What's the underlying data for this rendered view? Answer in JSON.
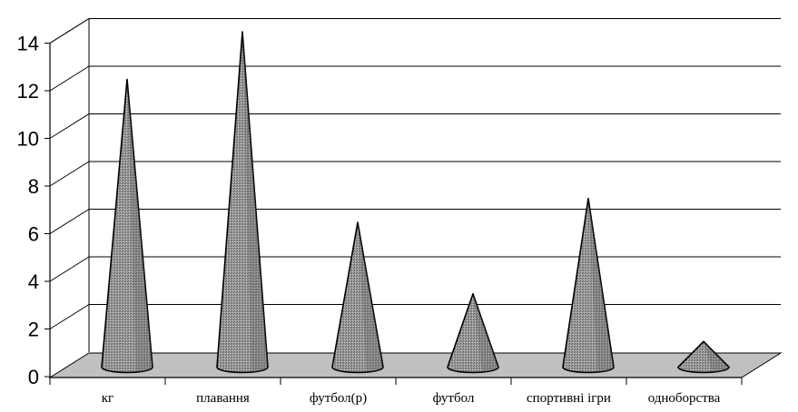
{
  "chart_data": {
    "type": "bar",
    "shape": "3d-cone",
    "categories": [
      "кг",
      "плавання",
      "футбол(р)",
      "футбол",
      "спортивні ігри",
      "одноборства"
    ],
    "values": [
      12,
      14,
      6,
      3,
      7,
      1
    ],
    "ylim": [
      0,
      14
    ],
    "yticks": [
      "0",
      "2",
      "4",
      "6",
      "8",
      "10",
      "12",
      "14"
    ],
    "title": "",
    "xlabel": "",
    "ylabel": "",
    "grid": true,
    "legend": "none",
    "colors": {
      "floor": "#c0c0c0",
      "cone_fill": "#8c8c8c",
      "cone_dark": "#555555",
      "grid": "#000000"
    }
  }
}
